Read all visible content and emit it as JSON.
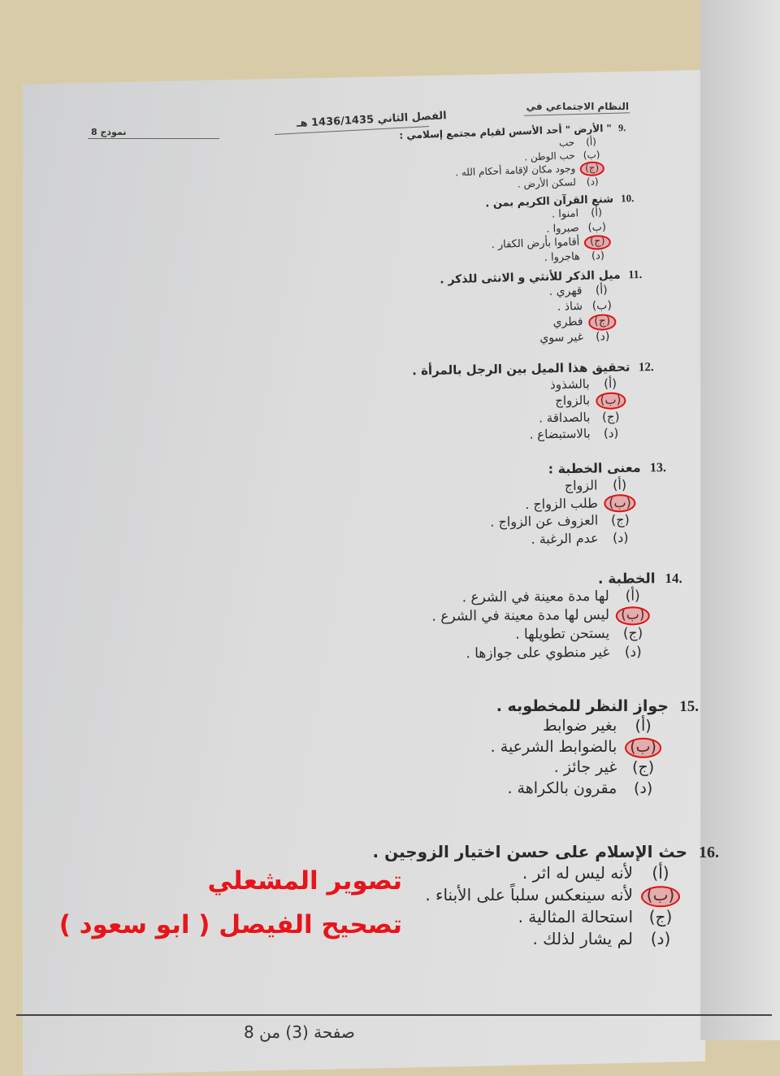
{
  "header": {
    "course": "النظام الاجتماعي في",
    "semester": "الفصل الثاني 1436/1435 هـ",
    "model": "نموذج 8"
  },
  "questions": [
    {
      "number": "9.",
      "text": "\" الأرض \" أحد الأسس لقيام مجتمع إسلامي :",
      "options": [
        {
          "label": "(أ)",
          "text": "حب"
        },
        {
          "label": "(ب)",
          "text": "حب الوطن ."
        },
        {
          "label": "(ج)",
          "text": "وجود مكان لإقامة أحكام الله ."
        },
        {
          "label": "(د)",
          "text": "لسكن الأرض ."
        }
      ],
      "answer": "(ج)"
    },
    {
      "number": "10.",
      "text": "شنع القرآن الكريم بمن .",
      "options": [
        {
          "label": "(أ)",
          "text": "امنوا ."
        },
        {
          "label": "(ب)",
          "text": "صبروا ."
        },
        {
          "label": "(ج)",
          "text": "أقاموا بأرض الكفار ."
        },
        {
          "label": "(د)",
          "text": "هاجروا ."
        }
      ],
      "answer": "(ج)"
    },
    {
      "number": "11.",
      "text": "ميل الذكر للأنثي و الانثى للذكر .",
      "options": [
        {
          "label": "(أ)",
          "text": "قهري ."
        },
        {
          "label": "(ب)",
          "text": "شاذ ."
        },
        {
          "label": "(ج)",
          "text": "فطري"
        },
        {
          "label": "(د)",
          "text": "غير سوي"
        }
      ],
      "answer": "(ج)"
    },
    {
      "number": "12.",
      "text": "تحقيق هذا الميل بين الرجل بالمرأة .",
      "options": [
        {
          "label": "(أ)",
          "text": "بالشذوذ"
        },
        {
          "label": "(ب)",
          "text": "بالزواج"
        },
        {
          "label": "(ج)",
          "text": "بالصداقة ."
        },
        {
          "label": "(د)",
          "text": "بالاستبضاع ."
        }
      ],
      "answer": "(ب)"
    },
    {
      "number": "13.",
      "text": "معنى الخطبة :",
      "options": [
        {
          "label": "(أ)",
          "text": "الزواج"
        },
        {
          "label": "(ب)",
          "text": "طلب الزواج ."
        },
        {
          "label": "(ج)",
          "text": "العزوف عن الزواج ."
        },
        {
          "label": "(د)",
          "text": "عدم الرغبة ."
        }
      ],
      "answer": "(ب)"
    },
    {
      "number": "14.",
      "text": "الخطبة .",
      "options": [
        {
          "label": "(أ)",
          "text": "لها مدة معينة في الشرع ."
        },
        {
          "label": "(ب)",
          "text": "ليس لها مدة معينة في الشرع ."
        },
        {
          "label": "(ج)",
          "text": "يستحن تطويلها ."
        },
        {
          "label": "(د)",
          "text": "غير منطوي على جوازها ."
        }
      ],
      "answer": "(ب)"
    },
    {
      "number": "15.",
      "text": "جواز النظر للمخطوبه .",
      "options": [
        {
          "label": "(أ)",
          "text": "بغير ضوابط"
        },
        {
          "label": "(ب)",
          "text": "بالضوابط الشرعية ."
        },
        {
          "label": "(ج)",
          "text": "غير جائز ."
        },
        {
          "label": "(د)",
          "text": "مقرون بالكراهة ."
        }
      ],
      "answer": "(ب)"
    },
    {
      "number": "16.",
      "text": "حث الإسلام على حسن اختيار الزوجين .",
      "options": [
        {
          "label": "(أ)",
          "text": "لأنه ليس له اثر ."
        },
        {
          "label": "(ب)",
          "text": "لأنه سينعكس سلباً على الأبناء ."
        },
        {
          "label": "(ج)",
          "text": "استحالة المثالية ."
        },
        {
          "label": "(د)",
          "text": "لم يشار لذلك ."
        }
      ],
      "answer": "(ب)"
    }
  ],
  "watermark": {
    "line1": "تصوير المشعلي",
    "line2": "تصحيح الفيصل ( ابو سعود )",
    "color": "#e8141a"
  },
  "footer": {
    "page": "صفحة (3) من 8"
  },
  "colors": {
    "answer_mark": "#e01010"
  }
}
